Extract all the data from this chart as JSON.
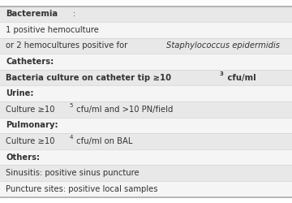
{
  "rows": [
    {
      "text_parts": [
        {
          "text": "Bacteremia",
          "bold": true
        },
        {
          "text": ":",
          "bold": false
        }
      ],
      "bg": "#e8e8e8",
      "indent": 0.02
    },
    {
      "text_parts": [
        {
          "text": "1 positive hemoculture",
          "bold": false
        }
      ],
      "bg": "#f5f5f5",
      "indent": 0.02
    },
    {
      "text_parts": [
        {
          "text": "or 2 hemocultures positive for ",
          "bold": false
        },
        {
          "text": "Staphylococcus epidermidis",
          "italic": true
        }
      ],
      "bg": "#e8e8e8",
      "indent": 0.02
    },
    {
      "text_parts": [
        {
          "text": "Catheters:",
          "bold": true
        }
      ],
      "bg": "#f5f5f5",
      "indent": 0.02
    },
    {
      "text_parts": [
        {
          "text": "Bacteria culture on catheter tip ≥10",
          "bold": true
        },
        {
          "text": "3",
          "bold": true,
          "super": true
        },
        {
          "text": " cfu/ml",
          "bold": true
        }
      ],
      "bg": "#e8e8e8",
      "indent": 0.02
    },
    {
      "text_parts": [
        {
          "text": "Urine:",
          "bold": true
        }
      ],
      "bg": "#f5f5f5",
      "indent": 0.02
    },
    {
      "text_parts": [
        {
          "text": "Culture ≥10",
          "bold": false
        },
        {
          "text": "5",
          "bold": false,
          "super": true
        },
        {
          "text": " cfu/ml and >10 PN/field",
          "bold": false
        }
      ],
      "bg": "#e8e8e8",
      "indent": 0.02
    },
    {
      "text_parts": [
        {
          "text": "Pulmonary:",
          "bold": true
        }
      ],
      "bg": "#f5f5f5",
      "indent": 0.02
    },
    {
      "text_parts": [
        {
          "text": "Culture ≥10",
          "bold": false
        },
        {
          "text": "4",
          "bold": false,
          "super": true
        },
        {
          "text": " cfu/ml on BAL",
          "bold": false
        }
      ],
      "bg": "#e8e8e8",
      "indent": 0.02
    },
    {
      "text_parts": [
        {
          "text": "Others:",
          "bold": true
        }
      ],
      "bg": "#f5f5f5",
      "indent": 0.02
    },
    {
      "text_parts": [
        {
          "text": "Sinusitis: positive sinus puncture",
          "bold": false
        }
      ],
      "bg": "#e8e8e8",
      "indent": 0.02
    },
    {
      "text_parts": [
        {
          "text": "Puncture sites: positive local samples",
          "bold": false
        }
      ],
      "bg": "#f5f5f5",
      "indent": 0.02
    }
  ],
  "border_color": "#aaaaaa",
  "divider_color": "#cccccc",
  "text_color": "#333333",
  "font_size": 7.2,
  "super_font_size": 5.0
}
